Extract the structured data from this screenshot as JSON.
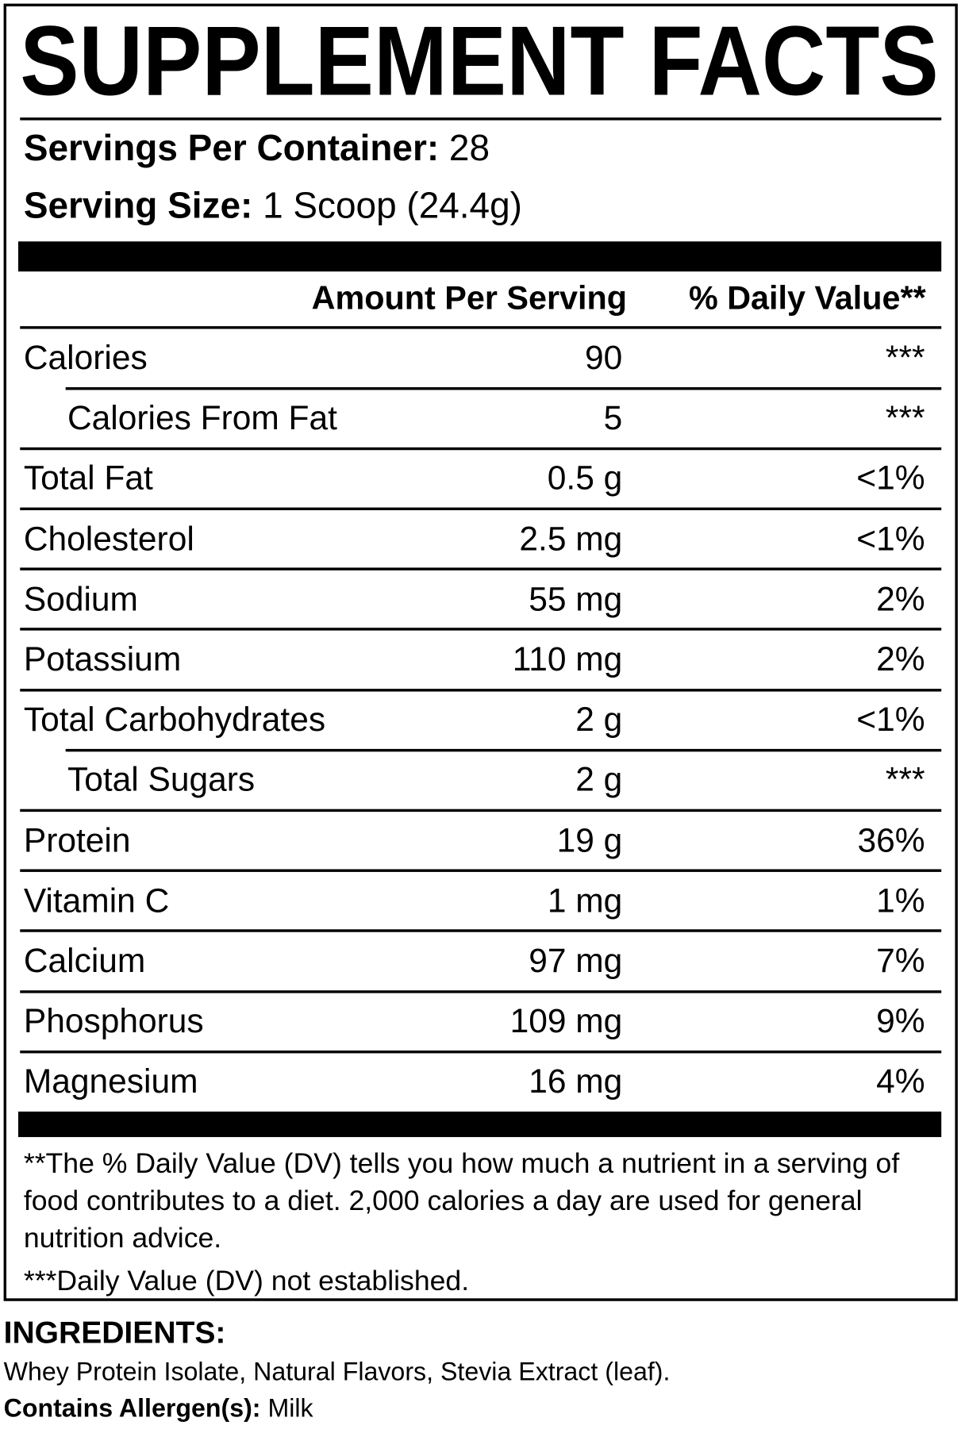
{
  "title": "SUPPLEMENT FACTS",
  "servings_per_container": {
    "label": "Servings Per Container:",
    "value": "28"
  },
  "serving_size": {
    "label": "Serving Size:",
    "value": "1 Scoop (24.4g)"
  },
  "table": {
    "headers": [
      "Amount Per Serving",
      "% Daily Value**"
    ],
    "rows": [
      {
        "name": "Calories",
        "amount": "90",
        "dv": "***"
      },
      {
        "name": "Calories From Fat",
        "amount": "5",
        "dv": "***",
        "indent": true
      },
      {
        "name": "Total Fat",
        "amount": "0.5 g",
        "dv": "<1%"
      },
      {
        "name": "Cholesterol",
        "amount": "2.5 mg",
        "dv": "<1%"
      },
      {
        "name": "Sodium",
        "amount": "55 mg",
        "dv": "2%"
      },
      {
        "name": "Potassium",
        "amount": "110 mg",
        "dv": "2%"
      },
      {
        "name": "Total Carbohydrates",
        "amount": "2 g",
        "dv": "<1%"
      },
      {
        "name": "Total Sugars",
        "amount": "2 g",
        "dv": "***",
        "indent": true
      },
      {
        "name": "Protein",
        "amount": "19 g",
        "dv": "36%"
      },
      {
        "name": "Vitamin C",
        "amount": "1 mg",
        "dv": "1%"
      },
      {
        "name": "Calcium",
        "amount": "97 mg",
        "dv": "7%"
      },
      {
        "name": "Phosphorus",
        "amount": "109 mg",
        "dv": "9%"
      },
      {
        "name": "Magnesium",
        "amount": "16 mg",
        "dv": "4%"
      }
    ]
  },
  "footnotes": [
    "**The % Daily Value (DV) tells you how much a nutrient in a serving of food contributes to a diet. 2,000 calories a day are used for general nutrition advice.",
    "***Daily Value (DV) not established."
  ],
  "ingredients": {
    "label": "INGREDIENTS:",
    "text": "Whey Protein Isolate, Natural Flavors, Stevia Extract (leaf)."
  },
  "allergens": {
    "label": "Contains Allergen(s):",
    "value": "Milk"
  }
}
